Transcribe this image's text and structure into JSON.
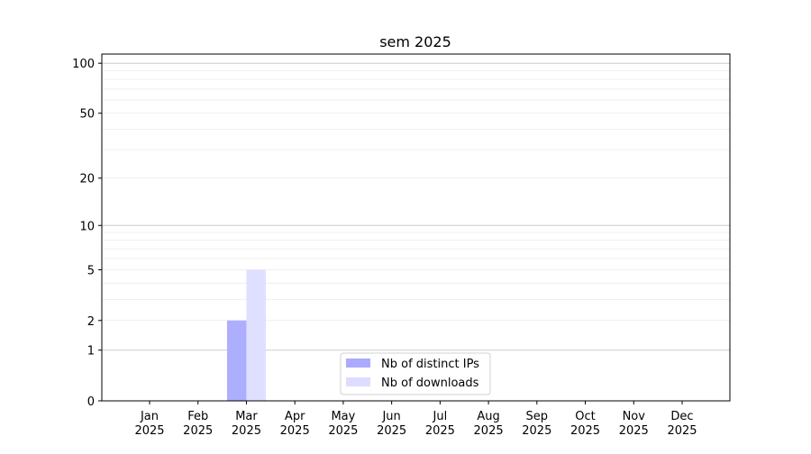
{
  "chart_data": {
    "type": "bar",
    "title": "sem 2025",
    "xlabel": "",
    "ylabel": "",
    "yscale": "log10(1+y)",
    "ylim": [
      0,
      113.5
    ],
    "yticks": [
      0,
      1,
      2,
      5,
      10,
      20,
      50,
      100
    ],
    "ytick_labels": [
      "0",
      "1",
      "2",
      "5",
      "10",
      "20",
      "50",
      "100"
    ],
    "grid": true,
    "categories": [
      [
        "Jan",
        "2025"
      ],
      [
        "Feb",
        "2025"
      ],
      [
        "Mar",
        "2025"
      ],
      [
        "Apr",
        "2025"
      ],
      [
        "May",
        "2025"
      ],
      [
        "Jun",
        "2025"
      ],
      [
        "Jul",
        "2025"
      ],
      [
        "Aug",
        "2025"
      ],
      [
        "Sep",
        "2025"
      ],
      [
        "Oct",
        "2025"
      ],
      [
        "Nov",
        "2025"
      ],
      [
        "Dec",
        "2025"
      ]
    ],
    "series": [
      {
        "name": "Nb of distinct IPs",
        "color": "#aaaaff",
        "values": [
          0,
          0,
          2,
          0,
          0,
          0,
          0,
          0,
          0,
          0,
          0,
          0
        ]
      },
      {
        "name": "Nb of downloads",
        "color": "#ddddff",
        "values": [
          0,
          0,
          5,
          0,
          0,
          0,
          0,
          0,
          0,
          0,
          0,
          0
        ]
      }
    ],
    "legend_position": "bottom-center"
  }
}
